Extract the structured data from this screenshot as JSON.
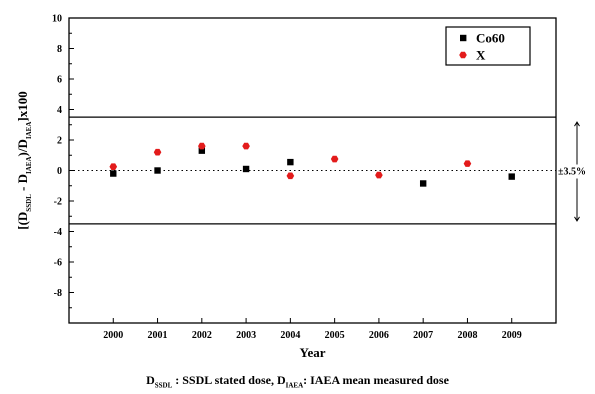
{
  "chart_data": {
    "type": "scatter",
    "x": [
      2000,
      2001,
      2002,
      2003,
      2004,
      2005,
      2006,
      2007,
      2008,
      2009
    ],
    "xlabel": "Year",
    "ylabel": {
      "prefix": "[(D",
      "sub1": "SSDL",
      "mid1": " - D",
      "sub2": "IAEA",
      "mid2": ")/D",
      "sub3": "IAEA",
      "suffix": "]x100"
    },
    "ylim": [
      -10,
      10
    ],
    "yticks": [
      10,
      8,
      6,
      4,
      2,
      0,
      -2,
      -4,
      -6,
      -8
    ],
    "xlim": [
      1999,
      2010
    ],
    "series": [
      {
        "name": "Co60",
        "marker": "square",
        "color": "#000000",
        "points": [
          {
            "x": 2000,
            "y": -0.2
          },
          {
            "x": 2001,
            "y": 0.0
          },
          {
            "x": 2002,
            "y": 1.3
          },
          {
            "x": 2003,
            "y": 0.1
          },
          {
            "x": 2004,
            "y": 0.55
          },
          {
            "x": 2007,
            "y": -0.85
          },
          {
            "x": 2009,
            "y": -0.4
          }
        ]
      },
      {
        "name": "X",
        "marker": "hexagon",
        "color": "#e31b1b",
        "points": [
          {
            "x": 2000,
            "y": 0.25
          },
          {
            "x": 2001,
            "y": 1.2
          },
          {
            "x": 2002,
            "y": 1.6
          },
          {
            "x": 2003,
            "y": 1.6
          },
          {
            "x": 2004,
            "y": -0.35
          },
          {
            "x": 2005,
            "y": 0.75
          },
          {
            "x": 2006,
            "y": -0.3
          },
          {
            "x": 2008,
            "y": 0.45
          }
        ]
      }
    ],
    "reference_lines": [
      3.5,
      -3.5
    ],
    "zero_line": "dotted",
    "band_label": "±3.5%",
    "legend_position": "top-right",
    "grid": false
  },
  "caption": {
    "d1": "D",
    "d1_sub": "SSDL",
    "text1": " : SSDL stated dose, D",
    "d2_sub": "IAEA",
    "text2": ": IAEA mean measured dose"
  }
}
